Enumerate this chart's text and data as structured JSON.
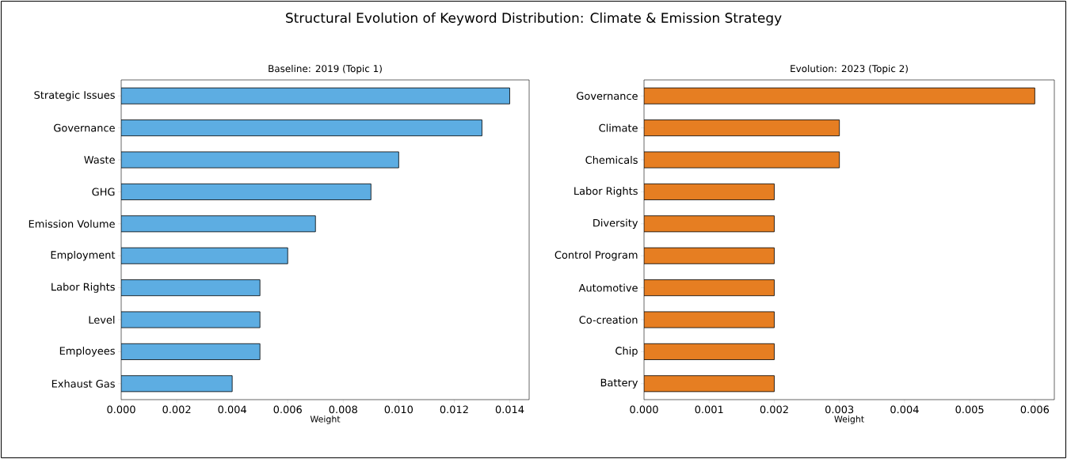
{
  "chart_data": [
    {
      "type": "other",
      "title": "Structural Evolution of Keyword Distribution: Climate & Emission Strategy"
    },
    {
      "type": "bar",
      "orientation": "horizontal",
      "title": "Baseline: 2019 (Topic 1)",
      "xlabel": "Weight",
      "color": "#5dade2",
      "categories": [
        "Strategic Issues",
        "Governance",
        "Waste",
        "GHG",
        "Emission Volume",
        "Employment",
        "Labor Rights",
        "Level",
        "Employees",
        "Exhaust Gas"
      ],
      "values": [
        0.014,
        0.013,
        0.01,
        0.009,
        0.007,
        0.006,
        0.005,
        0.005,
        0.005,
        0.004
      ],
      "xlim": [
        0,
        0.0147
      ],
      "xticks": [
        {
          "value": 0,
          "label": "0.000"
        },
        {
          "value": 0.002,
          "label": "0.002"
        },
        {
          "value": 0.004,
          "label": "0.004"
        },
        {
          "value": 0.006,
          "label": "0.006"
        },
        {
          "value": 0.008,
          "label": "0.008"
        },
        {
          "value": 0.01,
          "label": "0.010"
        },
        {
          "value": 0.012,
          "label": "0.012"
        },
        {
          "value": 0.014,
          "label": "0.014"
        }
      ]
    },
    {
      "type": "bar",
      "orientation": "horizontal",
      "title": "Evolution: 2023 (Topic 2)",
      "xlabel": "Weight",
      "color": "#e67e22",
      "categories": [
        "Governance",
        "Climate",
        "Chemicals",
        "Labor Rights",
        "Diversity",
        "Control Program",
        "Automotive",
        "Co-creation",
        "Chip",
        "Battery"
      ],
      "values": [
        0.006,
        0.003,
        0.003,
        0.002,
        0.002,
        0.002,
        0.002,
        0.002,
        0.002,
        0.002
      ],
      "xlim": [
        0,
        0.0063
      ],
      "xticks": [
        {
          "value": 0,
          "label": "0.000"
        },
        {
          "value": 0.001,
          "label": "0.001"
        },
        {
          "value": 0.002,
          "label": "0.002"
        },
        {
          "value": 0.003,
          "label": "0.003"
        },
        {
          "value": 0.004,
          "label": "0.004"
        },
        {
          "value": 0.005,
          "label": "0.005"
        },
        {
          "value": 0.006,
          "label": "0.006"
        }
      ]
    }
  ]
}
